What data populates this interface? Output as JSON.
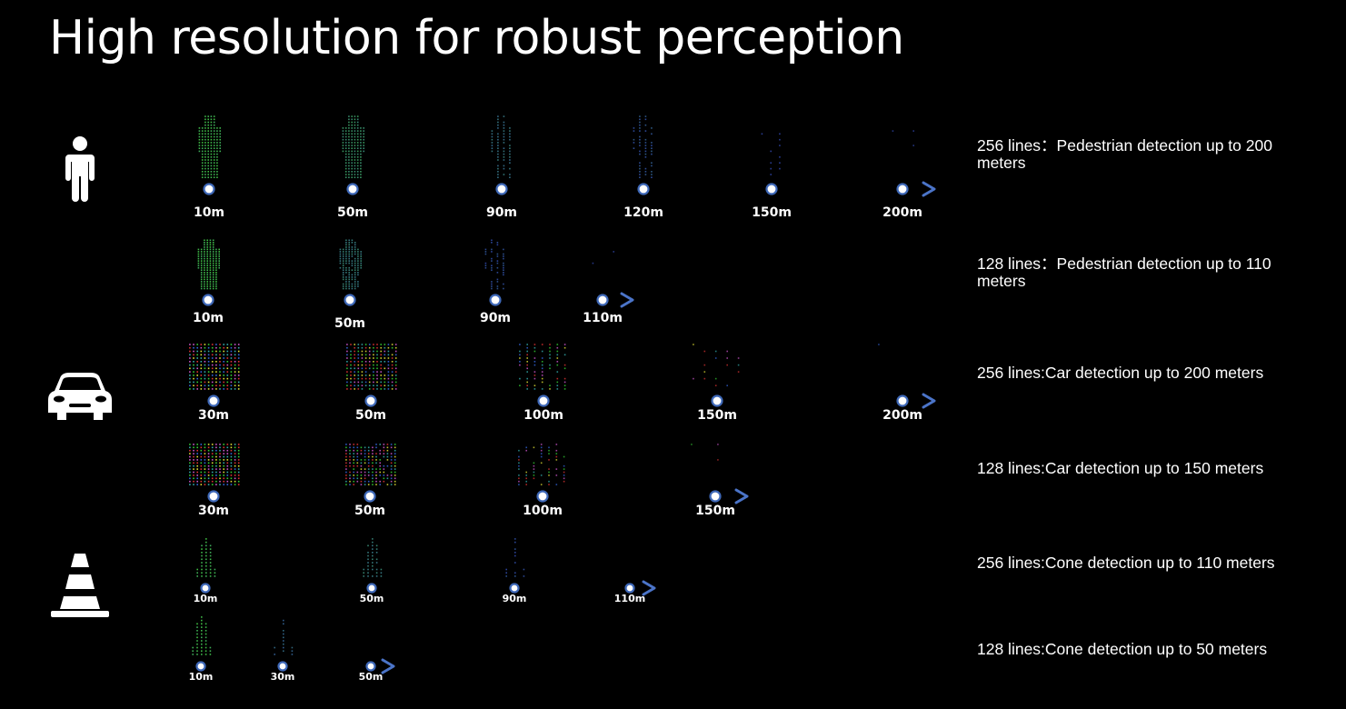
{
  "title": "High resolution for robust perception",
  "categories": [
    {
      "icon": "pedestrian-icon"
    },
    {
      "icon": "car-icon"
    },
    {
      "icon": "cone-icon"
    }
  ],
  "rows": [
    {
      "object": "pedestrian",
      "lines": 256,
      "description": "256 lines：Pedestrian detection up to 200 meters",
      "distances": [
        "10m",
        "50m",
        "90m",
        "120m",
        "150m",
        "200m"
      ]
    },
    {
      "object": "pedestrian",
      "lines": 128,
      "description": "128 lines：Pedestrian detection up to 110 meters",
      "distances": [
        "10m",
        "50m",
        "90m",
        "110m"
      ]
    },
    {
      "object": "car",
      "lines": 256,
      "description": "256 lines:Car detection up to 200 meters",
      "distances": [
        "30m",
        "50m",
        "100m",
        "150m",
        "200m"
      ]
    },
    {
      "object": "car",
      "lines": 128,
      "description": "128 lines:Car detection up to 150 meters",
      "distances": [
        "30m",
        "50m",
        "100m",
        "150m"
      ]
    },
    {
      "object": "cone",
      "lines": 256,
      "description": "256 lines:Cone detection up to 110 meters",
      "distances": [
        "10m",
        "50m",
        "90m",
        "110m"
      ]
    },
    {
      "object": "cone",
      "lines": 128,
      "description": "128 lines:Cone detection up to 50 meters",
      "distances": [
        "10m",
        "30m",
        "50m"
      ]
    }
  ],
  "colors": {
    "background": "#000000",
    "axis_start": "#4cc873",
    "axis_end": "#4b74c8",
    "marker_fill": "#ffffff",
    "marker_stroke": "#3e68b8",
    "points_near": "#3fbf3f",
    "points_far": "#3a55d0"
  }
}
